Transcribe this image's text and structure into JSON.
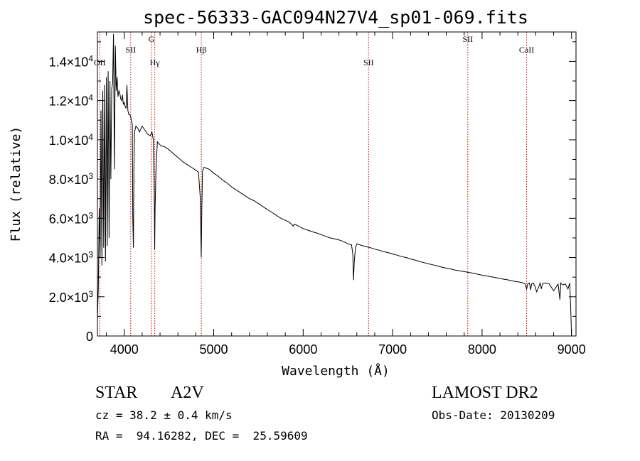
{
  "chart_data": {
    "type": "line",
    "title": "spec-56333-GAC094N27V4_sp01-069.fits",
    "xlabel": "Wavelength (Å)",
    "ylabel": "Flux (relative)",
    "xlim": [
      3700,
      9050
    ],
    "ylim": [
      0,
      15500
    ],
    "x_ticks": [
      {
        "value": 4000,
        "label": "4000"
      },
      {
        "value": 5000,
        "label": "5000"
      },
      {
        "value": 6000,
        "label": "6000"
      },
      {
        "value": 7000,
        "label": "7000"
      },
      {
        "value": 8000,
        "label": "8000"
      },
      {
        "value": 9000,
        "label": "9000"
      }
    ],
    "y_ticks": [
      {
        "value": 0,
        "mant": "0",
        "exp": ""
      },
      {
        "value": 2000,
        "mant": "2.0×10",
        "exp": "3"
      },
      {
        "value": 4000,
        "mant": "4.0×10",
        "exp": "3"
      },
      {
        "value": 6000,
        "mant": "6.0×10",
        "exp": "3"
      },
      {
        "value": 8000,
        "mant": "8.0×10",
        "exp": "3"
      },
      {
        "value": 10000,
        "mant": "1.0×10",
        "exp": "4"
      },
      {
        "value": 12000,
        "mant": "1.2×10",
        "exp": "4"
      },
      {
        "value": 14000,
        "mant": "1.4×10",
        "exp": "4"
      }
    ],
    "line_color": "#000000",
    "marker_color": "#cc0000",
    "spectral_lines": [
      {
        "wavelength": 3727,
        "label": "OII",
        "label_flux": 13800
      },
      {
        "wavelength": 4072,
        "label": "SII",
        "label_flux": 14450
      },
      {
        "wavelength": 4304,
        "label": "G",
        "label_flux": 15000
      },
      {
        "wavelength": 4341,
        "label": "Hγ",
        "label_flux": 13800
      },
      {
        "wavelength": 4861,
        "label": "Hβ",
        "label_flux": 14450
      },
      {
        "wavelength": 6731,
        "label": "SII",
        "label_flux": 13800
      },
      {
        "wavelength": 7840,
        "label": "SII",
        "label_flux": 15000
      },
      {
        "wavelength": 8498,
        "label": "CaII",
        "label_flux": 14450
      }
    ],
    "series": [
      {
        "x": [
          3700,
          3710,
          3720,
          3730,
          3740,
          3750,
          3760,
          3770,
          3780,
          3790,
          3800,
          3810,
          3820,
          3830,
          3840,
          3850,
          3860,
          3870,
          3880,
          3890,
          3900,
          3910,
          3920,
          3930,
          3940,
          3950,
          3960,
          3970,
          3980,
          3990,
          4000,
          4010,
          4020,
          4030,
          4040,
          4050,
          4060,
          4070,
          4080,
          4090,
          4095,
          4102,
          4108,
          4115,
          4130,
          4150,
          4170,
          4200,
          4230,
          4260,
          4290,
          4310,
          4325,
          4335,
          4340,
          4345,
          4355,
          4370,
          4390,
          4410,
          4450,
          4500,
          4550,
          4600,
          4650,
          4700,
          4750,
          4800,
          4830,
          4850,
          4855,
          4861,
          4867,
          4875,
          4890,
          4920,
          4950,
          5000,
          5050,
          5100,
          5150,
          5200,
          5250,
          5300,
          5350,
          5400,
          5450,
          5500,
          5550,
          5600,
          5650,
          5700,
          5750,
          5800,
          5850,
          5890,
          5900,
          5950,
          6000,
          6050,
          6100,
          6150,
          6200,
          6250,
          6300,
          6350,
          6400,
          6450,
          6500,
          6540,
          6555,
          6563,
          6571,
          6585,
          6600,
          6650,
          6700,
          6750,
          6800,
          6850,
          6900,
          6950,
          7000,
          7050,
          7100,
          7150,
          7200,
          7250,
          7300,
          7350,
          7400,
          7450,
          7500,
          7550,
          7600,
          7650,
          7700,
          7750,
          7800,
          7850,
          7900,
          7950,
          8000,
          8050,
          8100,
          8150,
          8200,
          8250,
          8300,
          8350,
          8400,
          8450,
          8480,
          8498,
          8510,
          8530,
          8542,
          8555,
          8570,
          8590,
          8610,
          8650,
          8662,
          8675,
          8700,
          8750,
          8800,
          8850,
          8870,
          8880,
          8900,
          8930,
          8960,
          8980,
          8990,
          9000
        ],
        "y": [
          800,
          2500,
          6500,
          4000,
          11500,
          3600,
          12500,
          4500,
          12800,
          3800,
          13200,
          4600,
          13500,
          5000,
          13000,
          8000,
          12600,
          12900,
          15400,
          8500,
          14800,
          12500,
          13200,
          12200,
          12500,
          12400,
          12100,
          12000,
          12300,
          11800,
          11900,
          11700,
          11600,
          12800,
          11500,
          11300,
          11300,
          11200,
          11000,
          10800,
          6000,
          4500,
          8500,
          10400,
          10700,
          10600,
          10400,
          10700,
          10500,
          10300,
          10200,
          10400,
          10000,
          7500,
          4400,
          6500,
          8500,
          9900,
          9800,
          9700,
          9650,
          9500,
          9300,
          9100,
          8900,
          8750,
          8600,
          8450,
          8350,
          7000,
          5500,
          4000,
          6500,
          8400,
          8600,
          8550,
          8500,
          8300,
          8150,
          7950,
          7800,
          7600,
          7450,
          7300,
          7150,
          7000,
          6900,
          6750,
          6600,
          6450,
          6300,
          6150,
          6000,
          5900,
          5780,
          5600,
          5700,
          5600,
          5480,
          5400,
          5320,
          5250,
          5170,
          5080,
          5000,
          4950,
          4900,
          4820,
          4700,
          4650,
          4200,
          2850,
          3800,
          4500,
          4700,
          4620,
          4560,
          4500,
          4430,
          4370,
          4300,
          4250,
          4180,
          4120,
          4050,
          4000,
          3930,
          3870,
          3800,
          3740,
          3680,
          3630,
          3570,
          3510,
          3460,
          3410,
          3360,
          3320,
          3280,
          3240,
          3200,
          3150,
          3100,
          3060,
          3020,
          2980,
          2930,
          2890,
          2850,
          2800,
          2760,
          2720,
          2650,
          2400,
          2650,
          2700,
          2350,
          2650,
          2700,
          2550,
          2250,
          2700,
          2400,
          2650,
          2700,
          2650,
          2300,
          2650,
          1850,
          2700,
          2600,
          2650,
          2400,
          2700,
          1500,
          0
        ]
      }
    ]
  },
  "footer": {
    "object_class": "STAR",
    "subclass": "A2V",
    "survey": "LAMOST DR2",
    "cz": "cz = 38.2 ± 0.4 km/s",
    "obs_date": "Obs-Date: 20130209",
    "coords": "RA =  94.16282, DEC =  25.59609"
  }
}
